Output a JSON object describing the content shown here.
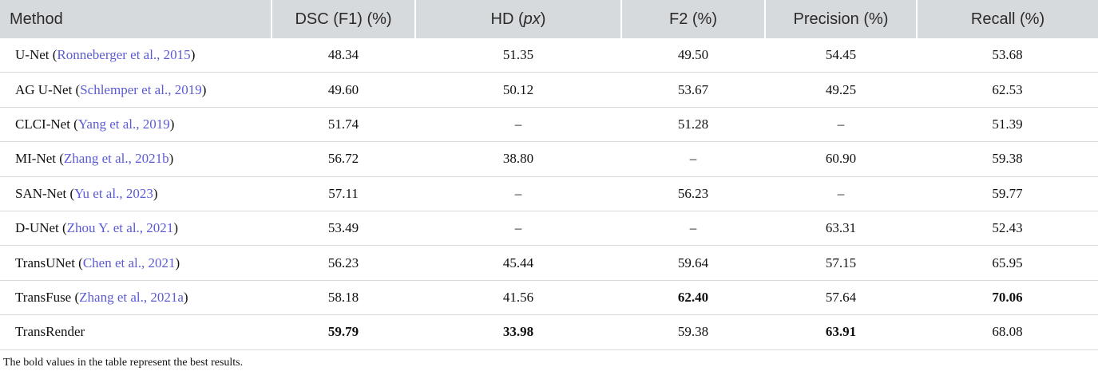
{
  "table": {
    "headers": [
      "Method",
      "DSC (F1) (%)",
      [
        "HD (",
        "px",
        ")"
      ],
      "F2 (%)",
      "Precision (%)",
      "Recall (%)"
    ],
    "rows": [
      {
        "method": [
          "U-Net (",
          "Ronneberger et al., 2015",
          ")"
        ],
        "values": [
          "48.34",
          "51.35",
          "49.50",
          "54.45",
          "53.68"
        ]
      },
      {
        "method": [
          "AG U-Net (",
          "Schlemper et al., 2019",
          ")"
        ],
        "values": [
          "49.60",
          "50.12",
          "53.67",
          "49.25",
          "62.53"
        ]
      },
      {
        "method": [
          "CLCI-Net (",
          "Yang et al., 2019",
          ")"
        ],
        "values": [
          "51.74",
          "–",
          "51.28",
          "–",
          "51.39"
        ]
      },
      {
        "method": [
          "MI-Net (",
          "Zhang et al., 2021b",
          ")"
        ],
        "values": [
          "56.72",
          "38.80",
          "–",
          "60.90",
          "59.38"
        ]
      },
      {
        "method": [
          "SAN-Net (",
          "Yu et al., 2023",
          ")"
        ],
        "values": [
          "57.11",
          "–",
          "56.23",
          "–",
          "59.77"
        ]
      },
      {
        "method": [
          "D-UNet (",
          "Zhou Y. et al., 2021",
          ")"
        ],
        "values": [
          "53.49",
          "–",
          "–",
          "63.31",
          "52.43"
        ]
      },
      {
        "method": [
          "TransUNet (",
          "Chen et al., 2021",
          ")"
        ],
        "values": [
          "56.23",
          "45.44",
          "59.64",
          "57.15",
          "65.95"
        ]
      },
      {
        "method": [
          "TransFuse (",
          "Zhang et al., 2021a",
          ")"
        ],
        "values": [
          "58.18",
          "41.56",
          {
            "text": "62.40",
            "bold": true
          },
          "57.64",
          {
            "text": "70.06",
            "bold": true
          }
        ]
      },
      {
        "method": [
          "TransRender"
        ],
        "values": [
          {
            "text": "59.79",
            "bold": true
          },
          {
            "text": "33.98",
            "bold": true
          },
          "59.38",
          {
            "text": "63.91",
            "bold": true
          },
          "68.08"
        ]
      }
    ],
    "footnote": "The bold values in the table represent the best results."
  }
}
